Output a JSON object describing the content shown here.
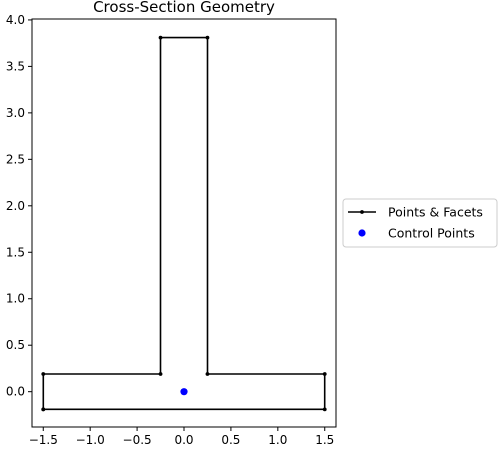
{
  "chart_data": {
    "type": "line",
    "title": "Cross-Section Geometry",
    "xlabel": "",
    "ylabel": "",
    "xlim": [
      -1.62,
      1.62
    ],
    "ylim": [
      -0.38,
      4.01
    ],
    "xticks": [
      -1.5,
      -1.0,
      -0.5,
      0.0,
      0.5,
      1.0,
      1.5
    ],
    "xtick_labels": [
      "−1.5",
      "−1.0",
      "−0.5",
      "0.0",
      "0.5",
      "1.0",
      "1.5"
    ],
    "yticks": [
      0.0,
      0.5,
      1.0,
      1.5,
      2.0,
      2.5,
      3.0,
      3.5,
      4.0
    ],
    "ytick_labels": [
      "0.0",
      "0.5",
      "1.0",
      "1.5",
      "2.0",
      "2.5",
      "3.0",
      "3.5",
      "4.0"
    ],
    "grid": false,
    "legend_position": "outside-right",
    "series": [
      {
        "name": "Points & Facets",
        "color": "#000000",
        "marker": "point",
        "x": [
          -1.5,
          1.5,
          1.5,
          0.25,
          0.25,
          -0.25,
          -0.25,
          -1.5,
          -1.5
        ],
        "y": [
          -0.19,
          -0.19,
          0.19,
          0.19,
          3.81,
          3.81,
          0.19,
          0.19,
          -0.19
        ]
      },
      {
        "name": "Control Points",
        "color": "#0000ff",
        "marker": "circle",
        "x": [
          0.0
        ],
        "y": [
          0.0
        ]
      }
    ]
  }
}
